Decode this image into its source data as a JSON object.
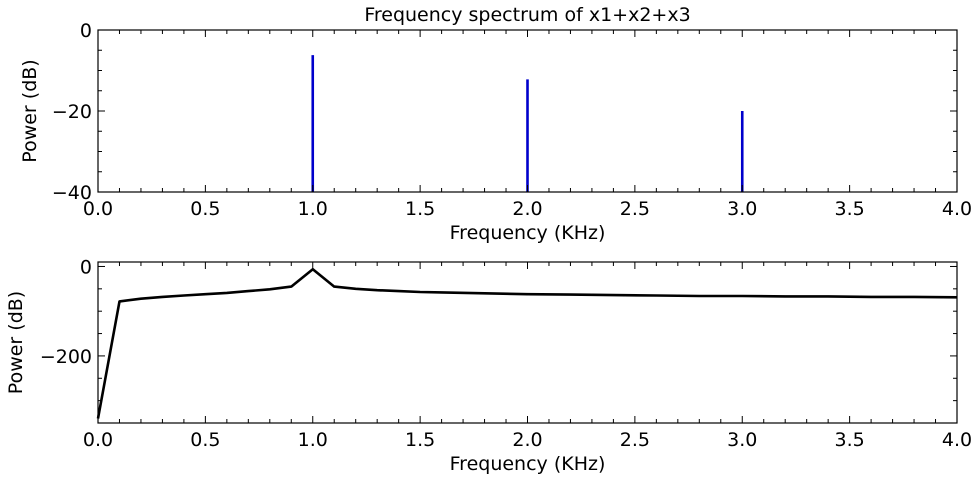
{
  "chart_data": [
    {
      "type": "bar",
      "title": "Frequency spectrum of x1+x2+x3",
      "xlabel": "Frequency (KHz)",
      "ylabel": "Power (dB)",
      "xlim": [
        0,
        4.0
      ],
      "ylim": [
        -40,
        0
      ],
      "xticks": [
        "0.0",
        "0.5",
        "1.0",
        "1.5",
        "2.0",
        "2.5",
        "3.0",
        "3.5",
        "4.0"
      ],
      "yticks": [
        "0",
        "−20",
        "−40"
      ],
      "grid": false,
      "color": "#0000cc",
      "x": [
        1.0,
        2.0,
        3.0
      ],
      "values": [
        -6.2,
        -12.2,
        -20.0
      ]
    },
    {
      "type": "line",
      "title": "",
      "xlabel": "Frequency (KHz)",
      "ylabel": "Power (dB)",
      "xlim": [
        0,
        4.0
      ],
      "ylim": [
        -350,
        10
      ],
      "xticks": [
        "0.0",
        "0.5",
        "1.0",
        "1.5",
        "2.0",
        "2.5",
        "3.0",
        "3.5",
        "4.0"
      ],
      "yticks": [
        "0",
        "−200"
      ],
      "grid": false,
      "color": "#000000",
      "x": [
        0.0,
        0.1,
        0.2,
        0.3,
        0.4,
        0.5,
        0.6,
        0.7,
        0.8,
        0.9,
        1.0,
        1.1,
        1.2,
        1.3,
        1.4,
        1.5,
        1.6,
        1.8,
        2.0,
        2.2,
        2.4,
        2.6,
        2.8,
        3.0,
        3.2,
        3.4,
        3.6,
        3.8,
        4.0
      ],
      "y": [
        -340,
        -78,
        -72,
        -68,
        -65,
        -62,
        -59,
        -55,
        -51,
        -45,
        -6,
        -45,
        -50,
        -53,
        -55,
        -57,
        -58,
        -60,
        -62,
        -63,
        -64,
        -65,
        -66,
        -66,
        -67,
        -67,
        -68,
        -68,
        -69
      ]
    }
  ]
}
